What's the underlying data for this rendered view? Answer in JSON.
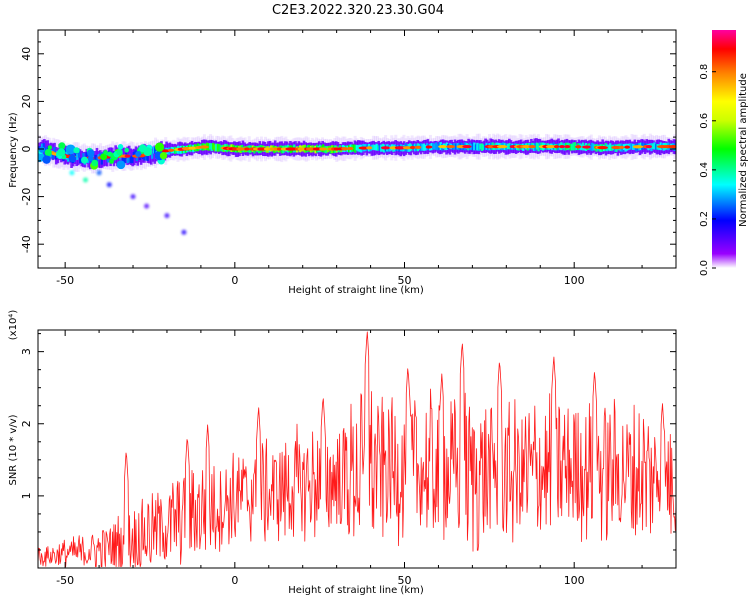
{
  "title": "C2E3.2022.320.23.30.G04",
  "spectrogram": {
    "xlabel": "Height of straight line (km)",
    "ylabel": "Frequency (Hz)",
    "xlim": [
      -58,
      130
    ],
    "ylim": [
      -50,
      50
    ],
    "xticks": [
      -50,
      0,
      50,
      100
    ],
    "yticks": [
      -40,
      -20,
      0,
      20,
      40
    ],
    "colorbar": {
      "label": "Normalized spectral amplitude",
      "range": [
        0.0,
        0.97
      ],
      "ticks": [
        "0.0",
        "0.2",
        "0.4",
        "0.6",
        "0.8"
      ],
      "tick_values": [
        0.0,
        0.2,
        0.4,
        0.6,
        0.8
      ],
      "colors": [
        "#ffffff",
        "#7a00ff",
        "#0000ff",
        "#00ffff",
        "#00ff00",
        "#ffff00",
        "#ff8000",
        "#ff0000",
        "#ff00a0"
      ]
    }
  },
  "chart_data": [
    {
      "type": "heatmap",
      "xlabel": "Height of straight line (km)",
      "ylabel": "Frequency (Hz)",
      "xlim": [
        -58,
        130
      ],
      "ylim": [
        -50,
        50
      ],
      "ridge": [
        {
          "x": -58,
          "y": 0,
          "a": 0.45
        },
        {
          "x": -50,
          "y": -3,
          "a": 0.5
        },
        {
          "x": -42,
          "y": -4,
          "a": 0.45
        },
        {
          "x": -35,
          "y": -3,
          "a": 0.5
        },
        {
          "x": -28,
          "y": -3,
          "a": 0.4
        },
        {
          "x": -22,
          "y": -1,
          "a": 0.55
        },
        {
          "x": -15,
          "y": 0,
          "a": 0.8
        },
        {
          "x": -8,
          "y": 1,
          "a": 0.85
        },
        {
          "x": 0,
          "y": 0,
          "a": 0.9
        },
        {
          "x": 10,
          "y": 0,
          "a": 0.9
        },
        {
          "x": 20,
          "y": 0,
          "a": 0.95
        },
        {
          "x": 30,
          "y": 0,
          "a": 0.9
        },
        {
          "x": 40,
          "y": 0.5,
          "a": 0.6
        },
        {
          "x": 50,
          "y": 0.5,
          "a": 0.6
        },
        {
          "x": 60,
          "y": 1,
          "a": 0.55
        },
        {
          "x": 70,
          "y": 1,
          "a": 0.6
        },
        {
          "x": 80,
          "y": 1,
          "a": 0.65
        },
        {
          "x": 90,
          "y": 1,
          "a": 0.65
        },
        {
          "x": 100,
          "y": 1,
          "a": 0.7
        },
        {
          "x": 110,
          "y": 0.5,
          "a": 0.65
        },
        {
          "x": 120,
          "y": 1,
          "a": 0.6
        },
        {
          "x": 130,
          "y": 1,
          "a": 0.55
        }
      ],
      "scatter_points": [
        {
          "x": -48,
          "y": -10,
          "a": 0.3
        },
        {
          "x": -44,
          "y": -13,
          "a": 0.35
        },
        {
          "x": -40,
          "y": -10,
          "a": 0.2
        },
        {
          "x": -37,
          "y": -15,
          "a": 0.15
        },
        {
          "x": -30,
          "y": -20,
          "a": 0.1
        },
        {
          "x": -26,
          "y": -24,
          "a": 0.08
        },
        {
          "x": -20,
          "y": -28,
          "a": 0.1
        },
        {
          "x": -15,
          "y": -35,
          "a": 0.12
        }
      ]
    },
    {
      "type": "line",
      "xlabel": "Height of straight line (km)",
      "ylabel": "SNR (10 * v/v)",
      "y_multiplier": "(x10⁴)",
      "xlim": [
        -58,
        130
      ],
      "ylim": [
        0,
        3.3
      ],
      "xticks": [
        -50,
        0,
        50,
        100
      ],
      "yticks": [
        1,
        2,
        3
      ],
      "color": "#ff0000",
      "envelope": {
        "x": [
          -58,
          -50,
          -40,
          -30,
          -20,
          -10,
          0,
          10,
          20,
          30,
          40,
          50,
          60,
          70,
          80,
          90,
          100,
          110,
          120,
          130
        ],
        "mean": [
          0.15,
          0.2,
          0.25,
          0.4,
          0.6,
          0.8,
          0.95,
          1.05,
          1.15,
          1.25,
          1.35,
          1.4,
          1.35,
          1.3,
          1.3,
          1.35,
          1.4,
          1.35,
          1.3,
          1.2
        ],
        "spread": [
          0.15,
          0.2,
          0.3,
          0.5,
          0.6,
          0.7,
          0.7,
          0.75,
          0.85,
          0.9,
          1.2,
          1.0,
          1.1,
          1.15,
          1.0,
          1.05,
          1.0,
          1.0,
          1.0,
          0.9
        ]
      },
      "peaks": [
        {
          "x": -32,
          "y": 1.65
        },
        {
          "x": -14,
          "y": 1.85
        },
        {
          "x": -8,
          "y": 2.0
        },
        {
          "x": 7,
          "y": 2.25
        },
        {
          "x": 26,
          "y": 2.4
        },
        {
          "x": 39,
          "y": 3.3
        },
        {
          "x": 51,
          "y": 2.8
        },
        {
          "x": 61,
          "y": 2.7
        },
        {
          "x": 67,
          "y": 3.15
        },
        {
          "x": 78,
          "y": 2.9
        },
        {
          "x": 94,
          "y": 2.95
        },
        {
          "x": 106,
          "y": 2.75
        },
        {
          "x": 126,
          "y": 2.3
        }
      ],
      "points": 900
    }
  ]
}
